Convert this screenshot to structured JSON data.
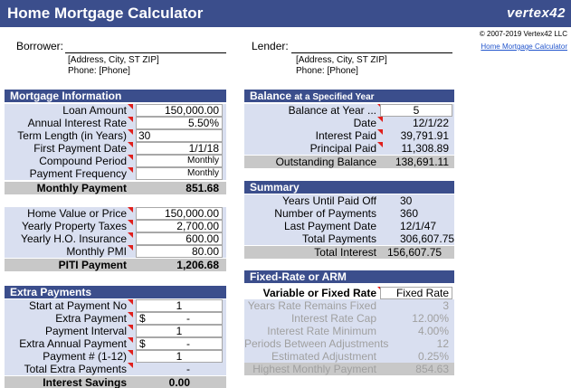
{
  "header": {
    "title": "Home Mortgage Calculator",
    "logo": "vertex42",
    "copyright": "© 2007-2019 Vertex42 LLC",
    "link": "Home Mortgage Calculator"
  },
  "parties": [
    {
      "label": "Borrower:",
      "address": "[Address, City, ST ZIP]",
      "phone": "Phone: [Phone]"
    },
    {
      "label": "Lender:",
      "address": "[Address, City, ST ZIP]",
      "phone": "Phone: [Phone]"
    }
  ],
  "mortgage": {
    "title": "Mortgage Information",
    "rows": [
      {
        "label": "Loan Amount",
        "value": "150,000.00"
      },
      {
        "label": "Annual Interest Rate",
        "value": "5.50%"
      },
      {
        "label": "Term Length (in Years)",
        "value": "30"
      },
      {
        "label": "First Payment Date",
        "value": "1/1/18"
      },
      {
        "label": "Compound Period",
        "value": "Monthly"
      },
      {
        "label": "Payment Frequency",
        "value": "Monthly"
      }
    ],
    "total": {
      "label": "Monthly Payment",
      "value": "851.68"
    }
  },
  "piti": {
    "rows": [
      {
        "label": "Home Value or Price",
        "value": "150,000.00"
      },
      {
        "label": "Yearly Property Taxes",
        "value": "2,700.00"
      },
      {
        "label": "Yearly H.O. Insurance",
        "value": "600.00"
      },
      {
        "label": "Monthly PMI",
        "value": "80.00"
      }
    ],
    "total": {
      "label": "PITI Payment",
      "value": "1,206.68"
    }
  },
  "extra": {
    "title": "Extra Payments",
    "rows": [
      {
        "label": "Start at Payment No",
        "value": "1"
      },
      {
        "label": "Extra Payment",
        "prefix": "$",
        "value": "-"
      },
      {
        "label": "Payment Interval",
        "value": "1"
      },
      {
        "label": "Extra Annual Payment",
        "prefix": "$",
        "value": "-"
      },
      {
        "label": "Payment # (1-12)",
        "value": "1"
      },
      {
        "label": "Total Extra Payments",
        "value": "-"
      }
    ],
    "total": {
      "label": "Interest Savings",
      "value": "0.00"
    }
  },
  "balance": {
    "title": "Balance",
    "subtitle": "at a Specified Year",
    "rows": [
      {
        "label": "Balance at Year ...",
        "value": "5"
      },
      {
        "label": "Date",
        "value": "12/1/22"
      },
      {
        "label": "Interest Paid",
        "value": "39,791.91"
      },
      {
        "label": "Principal Paid",
        "value": "11,308.89"
      }
    ],
    "total": {
      "label": "Outstanding Balance",
      "value": "138,691.11"
    }
  },
  "summary": {
    "title": "Summary",
    "rows": [
      {
        "label": "Years Until Paid Off",
        "value": "30"
      },
      {
        "label": "Number of Payments",
        "value": "360"
      },
      {
        "label": "Last Payment Date",
        "value": "12/1/47"
      },
      {
        "label": "Total Payments",
        "value": "306,607.75"
      }
    ],
    "total": {
      "label": "Total Interest",
      "value": "156,607.75"
    }
  },
  "arm": {
    "title": "Fixed-Rate or ARM",
    "rows": [
      {
        "label": "Variable or Fixed Rate",
        "value": "Fixed Rate"
      },
      {
        "label": "Years Rate Remains Fixed",
        "value": "3"
      },
      {
        "label": "Interest Rate Cap",
        "value": "12.00%"
      },
      {
        "label": "Interest Rate Minimum",
        "value": "4.00%"
      },
      {
        "label": "Periods Between Adjustments",
        "value": "12"
      },
      {
        "label": "Estimated Adjustment",
        "value": "0.25%"
      },
      {
        "label": "Highest Monthly Payment",
        "value": "854.63"
      }
    ]
  }
}
